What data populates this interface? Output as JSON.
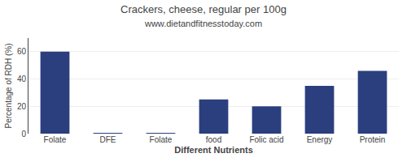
{
  "chart_data": {
    "type": "bar",
    "title": "Crackers, cheese, regular per 100g",
    "subtitle": "www.dietandfitnesstoday.com",
    "xlabel": "Different Nutrients",
    "ylabel": "Percentage of RDH (%)",
    "categories": [
      "Folate",
      "DFE",
      "Folate",
      "food",
      "Folic acid",
      "Energy",
      "Protein"
    ],
    "values": [
      60,
      0.3,
      0.3,
      25,
      20,
      35,
      46
    ],
    "color": "#2b3f7e",
    "ylim": [
      0,
      70
    ],
    "yticks": [
      0,
      20,
      40,
      60
    ],
    "grid": true
  }
}
